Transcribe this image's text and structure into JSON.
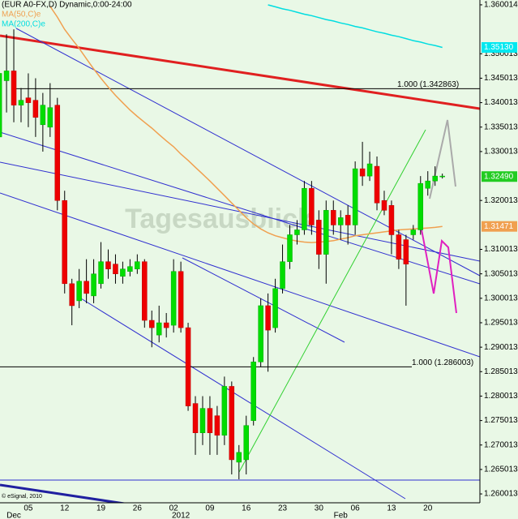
{
  "chart_data": {
    "type": "candlestick",
    "title": "(EUR A0-FX,D) Dynamic,0:00-24:00",
    "watermark": "Tagesausblick",
    "footer": "© eSignal, 2010",
    "x": [
      null,
      null,
      null,
      null,
      "05",
      null,
      null,
      null,
      null,
      "12",
      null,
      null,
      null,
      null,
      "19",
      null,
      null,
      null,
      null,
      "26",
      null,
      null,
      null,
      null,
      "02",
      null,
      null,
      null,
      null,
      "09",
      null,
      null,
      null,
      null,
      "16",
      null,
      null,
      null,
      null,
      "23",
      null,
      null,
      null,
      null,
      "30",
      null,
      null,
      null,
      null,
      "06",
      null,
      null,
      null,
      null,
      "13",
      null,
      null,
      null,
      null,
      "20",
      null,
      null
    ],
    "x_sublabels": [
      null,
      null,
      "Dec",
      null,
      null,
      null,
      null,
      null,
      null,
      null,
      null,
      null,
      null,
      null,
      null,
      null,
      null,
      null,
      null,
      null,
      null,
      null,
      null,
      null,
      null,
      "2012",
      null,
      null,
      null,
      null,
      null,
      null,
      null,
      null,
      null,
      null,
      null,
      null,
      null,
      null,
      null,
      null,
      null,
      null,
      null,
      null,
      null,
      "Feb",
      null,
      null,
      null,
      null,
      null,
      null,
      null,
      null,
      null,
      null,
      null,
      null,
      null,
      null
    ],
    "open": [
      1.333,
      1.3445,
      1.3465,
      1.3395,
      1.341,
      1.3405,
      1.3355,
      1.335,
      1.3395,
      1.32,
      1.303,
      1.2995,
      1.3035,
      1.3005,
      1.303,
      1.3075,
      1.307,
      1.3045,
      1.3055,
      1.306,
      1.3075,
      1.2955,
      1.2925,
      1.295,
      1.2945,
      1.3055,
      1.294,
      1.2785,
      1.2725,
      1.2775,
      1.276,
      1.272,
      1.282,
      1.2665,
      1.267,
      1.275,
      1.287,
      1.2985,
      1.294,
      1.302,
      1.3075,
      1.313,
      1.314,
      1.3225,
      1.316,
      1.309,
      1.318,
      1.315,
      1.317,
      1.315,
      1.3265,
      1.325,
      1.327,
      1.32,
      1.319,
      1.313,
      1.312,
      1.313,
      1.314,
      1.3225,
      1.324,
      1.325
    ],
    "high": [
      1.35,
      1.354,
      1.355,
      1.343,
      1.346,
      1.345,
      1.342,
      1.344,
      1.341,
      1.322,
      1.304,
      1.306,
      1.308,
      1.308,
      1.3115,
      1.31,
      1.309,
      1.3075,
      1.308,
      1.309,
      1.308,
      1.2975,
      1.2985,
      1.297,
      1.308,
      1.3075,
      1.295,
      1.28,
      1.28,
      1.28,
      1.278,
      1.284,
      1.283,
      1.27,
      1.276,
      1.288,
      1.3,
      1.301,
      1.304,
      1.311,
      1.315,
      1.316,
      1.324,
      1.324,
      1.318,
      1.32,
      1.32,
      1.318,
      1.319,
      1.328,
      1.332,
      1.33,
      1.329,
      1.322,
      1.32,
      1.314,
      1.313,
      1.315,
      1.325,
      1.326,
      1.327,
      1.3255
    ],
    "low": [
      1.327,
      1.338,
      1.336,
      1.336,
      1.335,
      1.333,
      1.33,
      1.333,
      1.318,
      1.301,
      1.2945,
      1.298,
      1.299,
      1.299,
      1.302,
      1.304,
      1.303,
      1.303,
      1.3045,
      1.305,
      1.294,
      1.29,
      1.291,
      1.292,
      1.293,
      1.293,
      1.277,
      1.268,
      1.27,
      1.268,
      1.268,
      1.27,
      1.264,
      1.263,
      1.264,
      1.274,
      1.286,
      1.285,
      1.293,
      1.301,
      1.306,
      1.311,
      1.313,
      1.313,
      1.306,
      1.303,
      1.313,
      1.312,
      1.311,
      1.313,
      1.323,
      1.324,
      1.318,
      1.317,
      1.309,
      1.306,
      1.2985,
      1.312,
      1.313,
      1.321,
      1.323,
      1.3245
    ],
    "close": [
      1.346,
      1.3465,
      1.3395,
      1.3405,
      1.34,
      1.337,
      1.3395,
      1.339,
      1.32,
      1.303,
      1.2985,
      1.3035,
      1.301,
      1.305,
      1.3075,
      1.306,
      1.305,
      1.306,
      1.3065,
      1.3075,
      1.2955,
      1.294,
      1.295,
      1.294,
      1.3055,
      1.294,
      1.278,
      1.2725,
      1.2775,
      1.2725,
      1.272,
      1.282,
      1.267,
      1.2685,
      1.274,
      1.287,
      1.2985,
      1.2935,
      1.302,
      1.3075,
      1.313,
      1.314,
      1.3225,
      1.315,
      1.309,
      1.318,
      1.315,
      1.3165,
      1.315,
      1.3265,
      1.325,
      1.3275,
      1.3195,
      1.318,
      1.313,
      1.308,
      1.307,
      1.314,
      1.3235,
      1.324,
      1.325,
      1.325
    ],
    "up_color": "#00dd00",
    "down_color": "#ee0000",
    "series": [
      {
        "name": "MA(50,C)e",
        "color": "#f0a050",
        "values": [
          null,
          null,
          null,
          null,
          null,
          null,
          null,
          1.3597,
          1.3575,
          1.355,
          1.353,
          1.3511,
          1.349,
          1.3469,
          1.345,
          1.3432,
          1.3415,
          1.34,
          1.3385,
          1.3372,
          1.336,
          1.3348,
          1.3335,
          1.3322,
          1.331,
          1.3295,
          1.3282,
          1.3268,
          1.3254,
          1.324,
          1.3225,
          1.321,
          1.3195,
          1.318,
          1.3165,
          1.3152,
          1.3142,
          1.3134,
          1.3128,
          1.3124,
          1.312,
          1.3117,
          1.3115,
          1.3114,
          1.3115,
          1.3116,
          1.3118,
          1.3121,
          1.3124,
          1.3128,
          1.313,
          1.3132,
          1.3134,
          1.3136,
          1.3138,
          1.314,
          1.3141,
          1.3142,
          1.3143,
          1.3144,
          1.3145,
          1.3147
        ]
      },
      {
        "name": "MA(200,C)e",
        "color": "#00dde0",
        "values": [
          null,
          null,
          null,
          null,
          null,
          null,
          null,
          null,
          null,
          null,
          null,
          null,
          null,
          null,
          null,
          null,
          null,
          null,
          null,
          null,
          null,
          null,
          null,
          null,
          null,
          null,
          null,
          null,
          null,
          null,
          null,
          null,
          null,
          null,
          null,
          null,
          null,
          1.36,
          1.3596,
          1.3592,
          1.3589,
          1.3585,
          1.3581,
          1.3578,
          1.3574,
          1.357,
          1.3567,
          1.3563,
          1.356,
          1.3556,
          1.3553,
          1.3549,
          1.3545,
          1.3542,
          1.3538,
          1.3535,
          1.3531,
          1.3527,
          1.3524,
          1.352,
          1.3517,
          1.3513
        ]
      }
    ],
    "last_value_boxes": [
      {
        "label": "1.35130",
        "value": 1.3513,
        "color": "#00e8f0"
      },
      {
        "label": "1.32490",
        "value": 1.3249,
        "color": "#22cc22"
      },
      {
        "label": "1.31471",
        "value": 1.31471,
        "color": "#f0a050"
      }
    ],
    "levels": [
      {
        "label": "1.000 (1.342863)",
        "value": 1.342863
      },
      {
        "label": "1.000 (1.286003)",
        "value": 1.286003
      }
    ],
    "ylim": [
      1.2582,
      1.361
    ],
    "yticks": [
      1.360014,
      1.350013,
      1.345013,
      1.340013,
      1.335013,
      1.330013,
      1.320013,
      1.310013,
      1.305013,
      1.300013,
      1.295013,
      1.290013,
      1.285013,
      1.280013,
      1.275013,
      1.270013,
      1.265013,
      1.260013
    ]
  }
}
